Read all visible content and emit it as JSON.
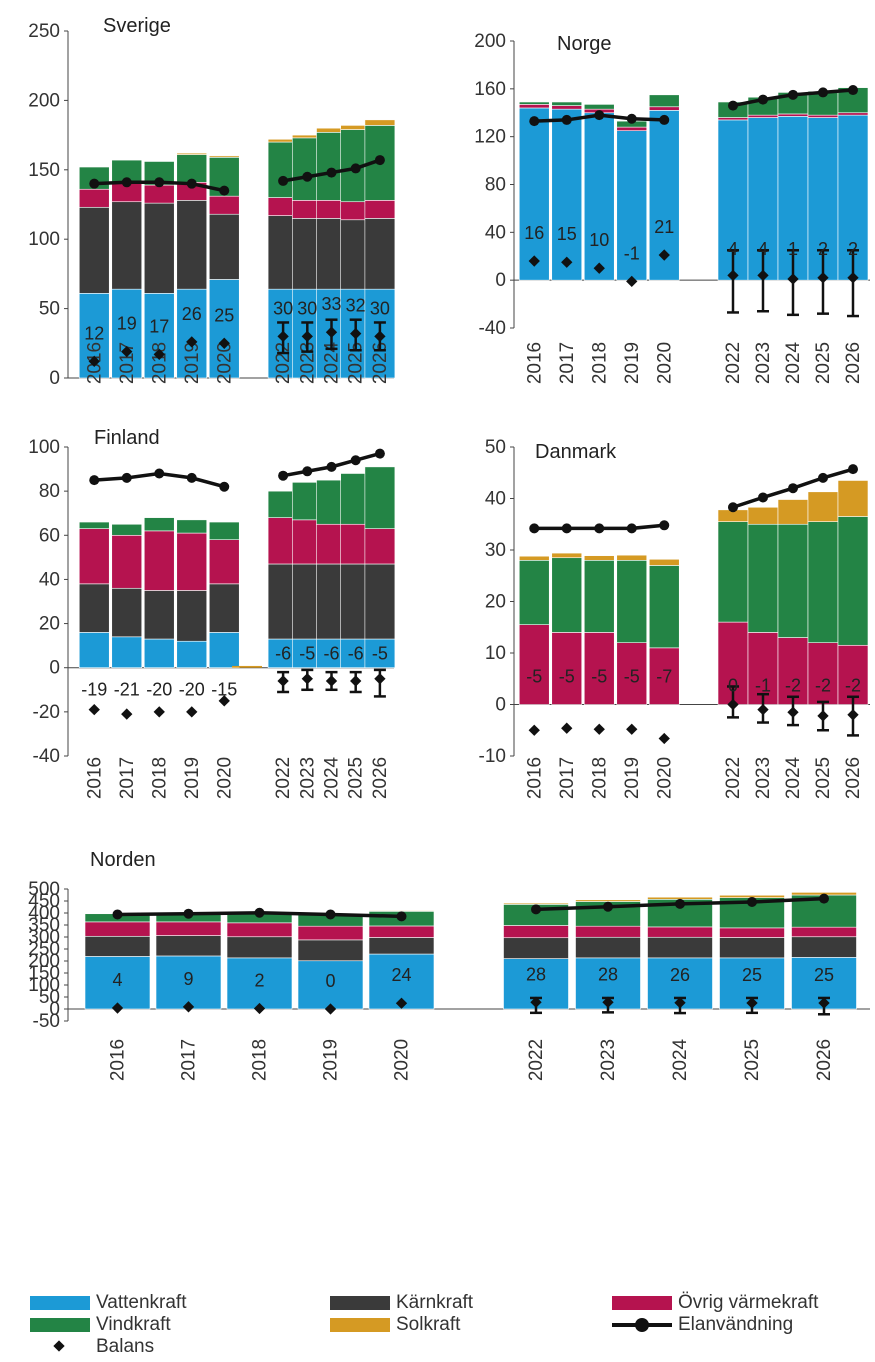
{
  "colors": {
    "vatten": "#1C9AD6",
    "karn": "#3A3A3A",
    "ovrig": "#B5134F",
    "vind": "#238445",
    "sol": "#D59A23",
    "line": "#111111",
    "axis": "#444444"
  },
  "legend": {
    "vatten": "Vattenkraft",
    "karn": "Kärnkraft",
    "ovrig": "Övrig värmekraft",
    "vind": "Vindkraft",
    "sol": "Solkraft",
    "elan": "Elanvändning",
    "balans": "Balans"
  },
  "chart_data": [
    {
      "type": "bar",
      "title": "Sverige",
      "ylim": [
        0,
        250
      ],
      "yticks": [
        0,
        50,
        100,
        150,
        200,
        250
      ],
      "categories": [
        "2016",
        "2017",
        "2018",
        "2019",
        "2020",
        "2022",
        "2023",
        "2024",
        "2025",
        "2026"
      ],
      "series": [
        {
          "name": "Vattenkraft",
          "values": [
            61,
            64,
            61,
            64,
            71,
            64,
            64,
            64,
            64,
            64
          ]
        },
        {
          "name": "Kärnkraft",
          "values": [
            62,
            63,
            65,
            64,
            47,
            53,
            51,
            51,
            50,
            51
          ]
        },
        {
          "name": "Övrig värmekraft",
          "values": [
            13,
            13,
            13,
            13,
            13,
            13,
            13,
            13,
            13,
            13
          ]
        },
        {
          "name": "Vindkraft",
          "values": [
            16,
            17,
            17,
            20,
            28,
            40,
            45,
            49,
            52,
            54
          ]
        },
        {
          "name": "Solkraft",
          "values": [
            0,
            0,
            0,
            1,
            1,
            2,
            2,
            3,
            3,
            4
          ]
        }
      ],
      "elanvandning": [
        140,
        141,
        141,
        140,
        135,
        142,
        145,
        148,
        151,
        157
      ],
      "balans": [
        12,
        19,
        17,
        26,
        25,
        30,
        30,
        33,
        32,
        30
      ],
      "balans_labels": [
        "12",
        "19",
        "17",
        "26",
        "25",
        "30",
        "30",
        "33",
        "32",
        "30"
      ],
      "error": [
        null,
        null,
        null,
        null,
        null,
        [
          18,
          40
        ],
        [
          19,
          40
        ],
        [
          21,
          42
        ],
        [
          20,
          42
        ],
        [
          20,
          40
        ]
      ]
    },
    {
      "type": "bar",
      "title": "Norge",
      "ylim": [
        -40,
        200
      ],
      "yticks": [
        -40,
        0,
        40,
        80,
        120,
        160,
        200
      ],
      "categories": [
        "2016",
        "2017",
        "2018",
        "2019",
        "2020",
        "2022",
        "2023",
        "2024",
        "2025",
        "2026"
      ],
      "series": [
        {
          "name": "Vattenkraft",
          "values": [
            144,
            143,
            140,
            125,
            142,
            134,
            136,
            137,
            136,
            138
          ]
        },
        {
          "name": "Kärnkraft",
          "values": [
            0,
            0,
            0,
            0,
            0,
            0,
            0,
            0,
            0,
            0
          ]
        },
        {
          "name": "Övrig värmekraft",
          "values": [
            3,
            3,
            3,
            3,
            3,
            2,
            2,
            2,
            2,
            2
          ]
        },
        {
          "name": "Vindkraft",
          "values": [
            2,
            3,
            4,
            5,
            10,
            13,
            15,
            18,
            20,
            21
          ]
        },
        {
          "name": "Solkraft",
          "values": [
            0,
            0,
            0,
            0,
            0,
            0,
            0,
            0,
            0,
            0
          ]
        }
      ],
      "elanvandning": [
        133,
        134,
        138,
        135,
        134,
        146,
        151,
        155,
        157,
        159
      ],
      "balans": [
        16,
        15,
        10,
        -1,
        21,
        4,
        4,
        1,
        2,
        2
      ],
      "balans_labels": [
        "16",
        "15",
        "10",
        "-1",
        "21",
        "4",
        "4",
        "1",
        "2",
        "2"
      ],
      "error": [
        null,
        null,
        null,
        null,
        null,
        [
          -27,
          25
        ],
        [
          -26,
          25
        ],
        [
          -29,
          25
        ],
        [
          -28,
          25
        ],
        [
          -30,
          25
        ]
      ]
    },
    {
      "type": "bar",
      "title": "Finland",
      "ylim": [
        -40,
        100
      ],
      "yticks": [
        -40,
        -20,
        0,
        20,
        40,
        60,
        80,
        100
      ],
      "categories": [
        "2016",
        "2017",
        "2018",
        "2019",
        "2020",
        "2022",
        "2023",
        "2024",
        "2025",
        "2026"
      ],
      "series": [
        {
          "name": "Vattenkraft",
          "values": [
            16,
            14,
            13,
            12,
            16,
            13,
            13,
            13,
            13,
            13
          ]
        },
        {
          "name": "Kärnkraft",
          "values": [
            22,
            22,
            22,
            23,
            22,
            34,
            34,
            34,
            34,
            34
          ]
        },
        {
          "name": "Övrig värmekraft",
          "values": [
            25,
            24,
            27,
            26,
            20,
            21,
            20,
            18,
            18,
            16
          ]
        },
        {
          "name": "Vindkraft",
          "values": [
            3,
            5,
            6,
            6,
            8,
            12,
            17,
            20,
            23,
            28
          ]
        },
        {
          "name": "Solkraft",
          "values": [
            0,
            0,
            0,
            0,
            0,
            0,
            0,
            0,
            0,
            0
          ]
        }
      ],
      "elanvandning": [
        85,
        86,
        88,
        86,
        82,
        87,
        89,
        91,
        94,
        97
      ],
      "balans": [
        -19,
        -21,
        -20,
        -20,
        -15,
        -6,
        -5,
        -6,
        -6,
        -5
      ],
      "balans_labels": [
        "-19",
        "-21",
        "-20",
        "-20",
        "-15",
        "-6",
        "-5",
        "-6",
        "-6",
        "-5"
      ],
      "error": [
        null,
        null,
        null,
        null,
        null,
        [
          -11,
          -2
        ],
        [
          -10,
          -1
        ],
        [
          -10,
          -2
        ],
        [
          -11,
          -2
        ],
        [
          -13,
          -1
        ]
      ]
    },
    {
      "type": "bar",
      "title": "Danmark",
      "ylim": [
        -10,
        50
      ],
      "yticks": [
        -10,
        0,
        10,
        20,
        30,
        40,
        50
      ],
      "categories": [
        "2016",
        "2017",
        "2018",
        "2019",
        "2020",
        "2022",
        "2023",
        "2024",
        "2025",
        "2026"
      ],
      "series": [
        {
          "name": "Vattenkraft",
          "values": [
            0,
            0,
            0,
            0,
            0,
            0,
            0,
            0,
            0,
            0
          ]
        },
        {
          "name": "Kärnkraft",
          "values": [
            0,
            0,
            0,
            0,
            0,
            0,
            0,
            0,
            0,
            0
          ]
        },
        {
          "name": "Övrig värmekraft",
          "values": [
            15.5,
            14,
            14,
            12,
            11,
            16,
            14,
            13,
            12,
            11.5
          ]
        },
        {
          "name": "Vindkraft",
          "values": [
            12.5,
            14.5,
            14,
            16,
            16,
            19.5,
            21,
            22,
            23.5,
            25
          ]
        },
        {
          "name": "Solkraft",
          "values": [
            0.8,
            0.9,
            0.9,
            1,
            1.2,
            2.3,
            3.3,
            4.8,
            5.8,
            7
          ]
        }
      ],
      "elanvandning": [
        34.2,
        34.2,
        34.2,
        34.2,
        34.8,
        38.3,
        40.2,
        42,
        44,
        45.7
      ],
      "balans": [
        -5,
        -4.6,
        -4.8,
        -4.8,
        -6.6,
        0,
        -1,
        -1.5,
        -2.2,
        -2
      ],
      "balans_labels": [
        "-5",
        "-5",
        "-5",
        "-5",
        "-7",
        "0",
        "-1",
        "-2",
        "-2",
        "-2"
      ],
      "error": [
        null,
        null,
        null,
        null,
        null,
        [
          -2.5,
          3.5
        ],
        [
          -3.5,
          2
        ],
        [
          -4,
          1.5
        ],
        [
          -5,
          0.5
        ],
        [
          -6,
          1.5
        ]
      ]
    },
    {
      "type": "bar",
      "title": "Norden",
      "ylim": [
        -50,
        500
      ],
      "yticks": [
        -50,
        0,
        50,
        100,
        150,
        200,
        250,
        300,
        350,
        400,
        450,
        500
      ],
      "categories": [
        "2016",
        "2017",
        "2018",
        "2019",
        "2020",
        "2022",
        "2023",
        "2024",
        "2025",
        "2026"
      ],
      "series": [
        {
          "name": "Vattenkraft",
          "values": [
            219,
            221,
            213,
            201,
            229,
            210,
            213,
            213,
            213,
            215
          ]
        },
        {
          "name": "Kärnkraft",
          "values": [
            84,
            85,
            88,
            87,
            69,
            87,
            86,
            86,
            85,
            86
          ]
        },
        {
          "name": "Övrig värmekraft",
          "values": [
            60,
            57,
            58,
            57,
            48,
            51,
            46,
            43,
            40,
            40
          ]
        },
        {
          "name": "Vindkraft",
          "values": [
            34,
            39,
            42,
            49,
            61,
            88,
            103,
            115,
            126,
            134
          ]
        },
        {
          "name": "Solkraft",
          "values": [
            1,
            2,
            2,
            2,
            3,
            5,
            7,
            9,
            10,
            11
          ]
        }
      ],
      "elanvandning": [
        394,
        397,
        401,
        394,
        386,
        415,
        426,
        438,
        446,
        460
      ],
      "balans": [
        4,
        9,
        2,
        0,
        24,
        28,
        28,
        26,
        25,
        25
      ],
      "balans_labels": [
        "4",
        "9",
        "2",
        "0",
        "24",
        "28",
        "28",
        "26",
        "25",
        "25"
      ],
      "error": [
        null,
        null,
        null,
        null,
        null,
        [
          -16,
          46
        ],
        [
          -14,
          46
        ],
        [
          -17,
          46
        ],
        [
          -16,
          46
        ],
        [
          -22,
          46
        ]
      ]
    }
  ]
}
